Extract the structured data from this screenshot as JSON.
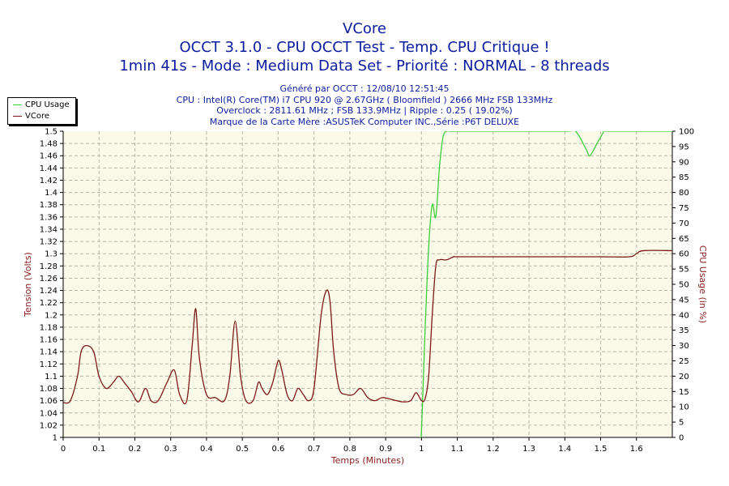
{
  "titles": {
    "line1": "VCore",
    "line2": "OCCT 3.1.0 - CPU OCCT Test - Temp. CPU Critique !",
    "line3": "1min 41s - Mode : Medium Data Set - Priorité : NORMAL - 8 threads"
  },
  "info": {
    "line1": "Généré par OCCT : 12/08/10 12:51:45",
    "line2": "CPU : Intel(R) Core(TM) i7 CPU 920 @ 2.67GHz ( Bloomfield ) 2666 MHz FSB 133MHz",
    "line3": "Overclock : 2811.61 MHz ; FSB 133.9MHz | Ripple : 0.25 ( 19.02%)",
    "line4": "Marque de la Carte Mère :ASUSTeK Computer INC.,Série :P6T DELUXE"
  },
  "legend": [
    {
      "label": "CPU Usage",
      "color": "#3ccf3c"
    },
    {
      "label": "VCore",
      "color": "#7b1a1a"
    }
  ],
  "colors": {
    "plot_background": "#fbf9e7",
    "grid": "#b8b8a8",
    "cpu_usage": "#3ccf3c",
    "vcore": "#7b1a1a",
    "left_axis_label": "#8b2222",
    "right_axis_label": "#8b2222",
    "x_axis_label": "#8b2222"
  },
  "chart_data": {
    "type": "line",
    "xlabel": "Temps (Minutes)",
    "ylabel": "Tension (Volts)",
    "y2label": "CPU Usage (in %)",
    "xlim": [
      0,
      1.7
    ],
    "ylim": [
      1.0,
      1.5
    ],
    "y2lim": [
      0,
      100
    ],
    "grid": true,
    "legend_position": "top-left",
    "x_ticks": [
      "0",
      "0.1",
      "0.2",
      "0.3",
      "0.4",
      "0.5",
      "0.6",
      "0.7",
      "0.8",
      "0.9",
      "1",
      "1.1",
      "1.2",
      "1.3",
      "1.4",
      "1.5",
      "1.6"
    ],
    "y_ticks": [
      "1",
      "1.02",
      "1.04",
      "1.06",
      "1.08",
      "1.1",
      "1.12",
      "1.14",
      "1.16",
      "1.18",
      "1.2",
      "1.22",
      "1.24",
      "1.26",
      "1.28",
      "1.3",
      "1.32",
      "1.34",
      "1.36",
      "1.38",
      "1.4",
      "1.42",
      "1.44",
      "1.46",
      "1.48",
      "1.5"
    ],
    "y2_ticks": [
      "0",
      "5",
      "10",
      "15",
      "20",
      "25",
      "30",
      "35",
      "40",
      "45",
      "50",
      "55",
      "60",
      "65",
      "70",
      "75",
      "80",
      "85",
      "90",
      "95",
      "100"
    ],
    "series": [
      {
        "name": "VCore",
        "axis": "left",
        "x": [
          0.0,
          0.02,
          0.04,
          0.05,
          0.065,
          0.085,
          0.1,
          0.12,
          0.14,
          0.155,
          0.17,
          0.19,
          0.21,
          0.23,
          0.245,
          0.265,
          0.29,
          0.31,
          0.325,
          0.345,
          0.36,
          0.37,
          0.38,
          0.4,
          0.425,
          0.45,
          0.465,
          0.48,
          0.495,
          0.51,
          0.53,
          0.545,
          0.555,
          0.57,
          0.585,
          0.6,
          0.61,
          0.625,
          0.64,
          0.655,
          0.67,
          0.685,
          0.7,
          0.72,
          0.735,
          0.745,
          0.755,
          0.77,
          0.79,
          0.81,
          0.83,
          0.85,
          0.87,
          0.89,
          0.91,
          0.93,
          0.95,
          0.97,
          0.985,
          1.0,
          1.01,
          1.02,
          1.03,
          1.04,
          1.05,
          1.07,
          1.09,
          1.1,
          1.2,
          1.3,
          1.4,
          1.5,
          1.58,
          1.6,
          1.62,
          1.7
        ],
        "y": [
          1.057,
          1.06,
          1.1,
          1.14,
          1.15,
          1.14,
          1.1,
          1.08,
          1.09,
          1.1,
          1.09,
          1.075,
          1.058,
          1.08,
          1.06,
          1.06,
          1.09,
          1.11,
          1.07,
          1.06,
          1.15,
          1.21,
          1.13,
          1.07,
          1.065,
          1.06,
          1.1,
          1.19,
          1.1,
          1.06,
          1.06,
          1.09,
          1.08,
          1.07,
          1.09,
          1.125,
          1.11,
          1.07,
          1.06,
          1.08,
          1.07,
          1.06,
          1.08,
          1.2,
          1.24,
          1.22,
          1.14,
          1.08,
          1.07,
          1.07,
          1.08,
          1.065,
          1.06,
          1.065,
          1.063,
          1.06,
          1.058,
          1.06,
          1.073,
          1.06,
          1.063,
          1.1,
          1.2,
          1.28,
          1.29,
          1.29,
          1.295,
          1.295,
          1.295,
          1.295,
          1.295,
          1.295,
          1.295,
          1.3,
          1.305,
          1.305
        ]
      },
      {
        "name": "CPU Usage",
        "axis": "right",
        "x": [
          0.995,
          1.0,
          1.01,
          1.02,
          1.03,
          1.04,
          1.05,
          1.06,
          1.07,
          1.08,
          1.1,
          1.2,
          1.4,
          1.43,
          1.46,
          1.47,
          1.49,
          1.51,
          1.52,
          1.6,
          1.7
        ],
        "y": [
          0,
          2,
          35,
          62,
          76,
          72,
          88,
          98,
          100,
          100,
          100,
          100,
          100,
          100,
          94,
          92,
          96,
          100,
          100,
          100,
          100
        ]
      }
    ]
  }
}
